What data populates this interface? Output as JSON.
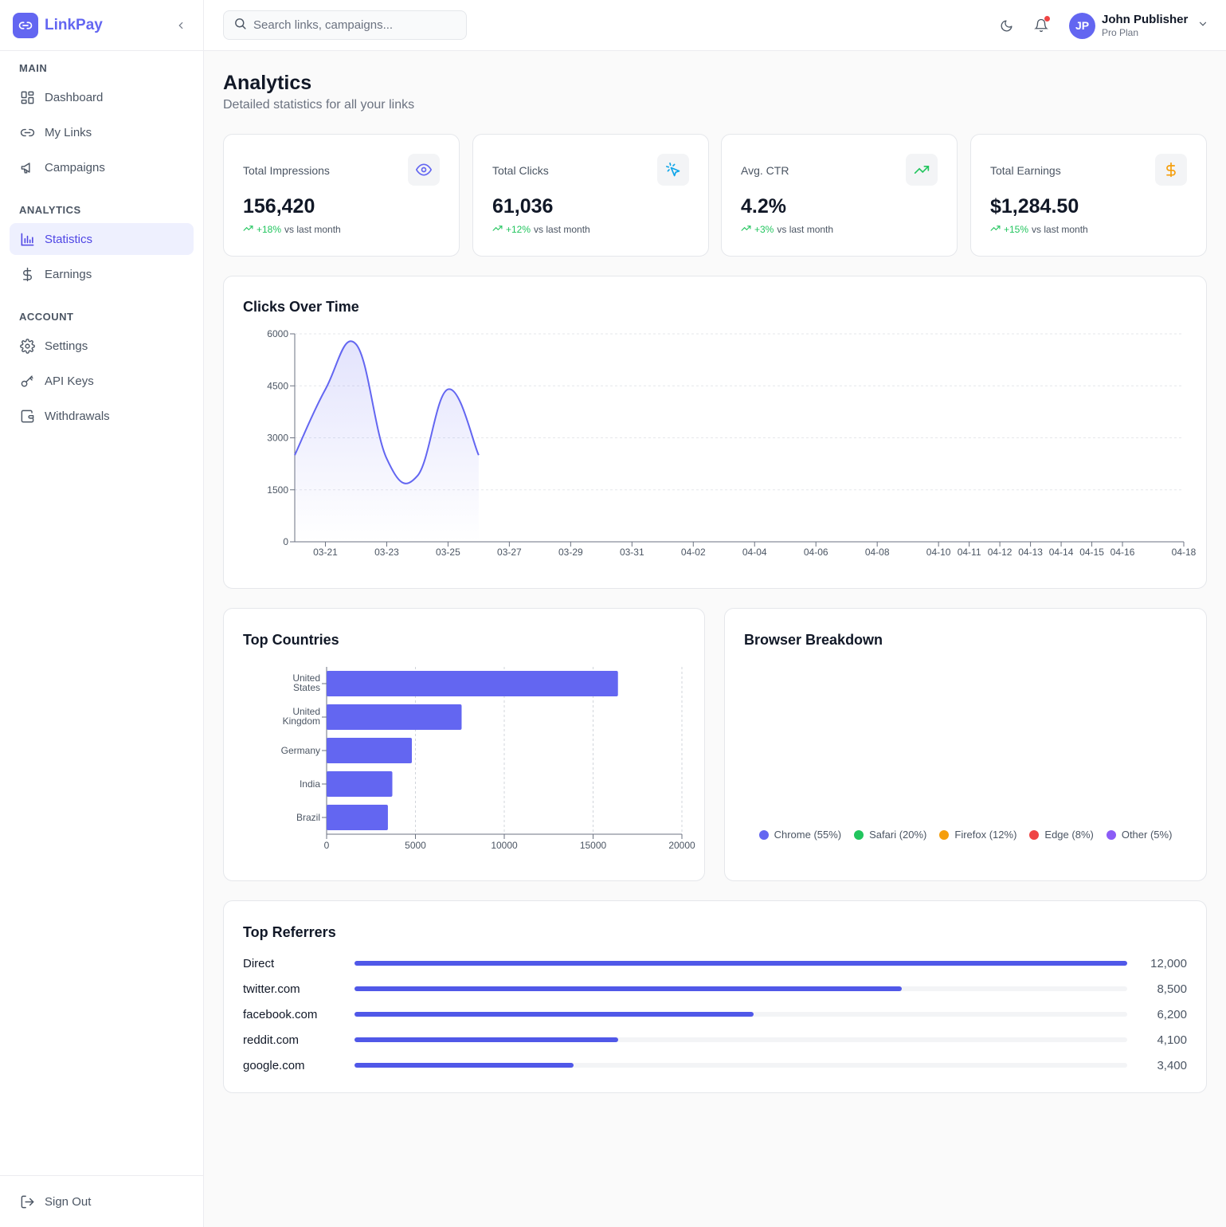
{
  "brand": {
    "name": "LinkPay"
  },
  "sidebar": {
    "sections": [
      {
        "heading": "MAIN",
        "items": [
          {
            "label": "Dashboard",
            "icon": "dashboard-icon"
          },
          {
            "label": "My Links",
            "icon": "link-icon"
          },
          {
            "label": "Campaigns",
            "icon": "megaphone-icon"
          }
        ]
      },
      {
        "heading": "ANALYTICS",
        "items": [
          {
            "label": "Statistics",
            "icon": "bar-chart-icon",
            "active": true
          },
          {
            "label": "Earnings",
            "icon": "dollar-icon"
          }
        ]
      },
      {
        "heading": "ACCOUNT",
        "items": [
          {
            "label": "Settings",
            "icon": "gear-icon"
          },
          {
            "label": "API Keys",
            "icon": "key-icon"
          },
          {
            "label": "Withdrawals",
            "icon": "wallet-icon"
          }
        ]
      }
    ],
    "signout_label": "Sign Out"
  },
  "header": {
    "search_placeholder": "Search links, campaigns...",
    "user": {
      "initials": "JP",
      "name": "John Publisher",
      "plan": "Pro Plan"
    }
  },
  "page": {
    "title": "Analytics",
    "subtitle": "Detailed statistics for all your links"
  },
  "stats": [
    {
      "label": "Total Impressions",
      "value": "156,420",
      "change": "+18%",
      "suffix": "vs last month",
      "icon": "eye-icon",
      "icon_color": "#6366f1"
    },
    {
      "label": "Total Clicks",
      "value": "61,036",
      "change": "+12%",
      "suffix": "vs last month",
      "icon": "cursor-click-icon",
      "icon_color": "#0ea5e9"
    },
    {
      "label": "Avg. CTR",
      "value": "4.2%",
      "change": "+3%",
      "suffix": "vs last month",
      "icon": "trending-up-icon",
      "icon_color": "#22c55e"
    },
    {
      "label": "Total Earnings",
      "value": "$1,284.50",
      "change": "+15%",
      "suffix": "vs last month",
      "icon": "dollar-icon",
      "icon_color": "#f59e0b"
    }
  ],
  "colors": {
    "accent": "#6366f1",
    "positive": "#22c55e"
  },
  "chart_data": [
    {
      "type": "area",
      "title": "Clicks Over Time",
      "x": [
        "03-20",
        "03-21",
        "03-22",
        "03-23",
        "03-24",
        "03-25",
        "03-26"
      ],
      "values": [
        2500,
        4400,
        5700,
        2400,
        1900,
        4400,
        2500
      ],
      "x_ticks": [
        "03-21",
        "03-23",
        "03-25",
        "03-27",
        "03-29",
        "03-31",
        "04-02",
        "04-04",
        "04-06",
        "04-08",
        "04-10",
        "04-11",
        "04-12",
        "04-13",
        "04-14",
        "04-15",
        "04-16",
        "04-18"
      ],
      "y_ticks": [
        0,
        1500,
        3000,
        4500,
        6000
      ],
      "ylim": [
        0,
        6000
      ],
      "grid": true,
      "color": "#6366f1"
    },
    {
      "type": "bar",
      "orientation": "horizontal",
      "title": "Top Countries",
      "categories": [
        "United States",
        "United Kingdom",
        "Germany",
        "India",
        "Brazil"
      ],
      "values": [
        16400,
        7600,
        4800,
        3700,
        3450
      ],
      "x_ticks": [
        0,
        5000,
        10000,
        15000,
        20000
      ],
      "xlim": [
        0,
        20000
      ],
      "grid": true,
      "color": "#6366f1"
    },
    {
      "type": "pie",
      "title": "Browser Breakdown",
      "legend": "bottom",
      "slices": [
        {
          "name": "Chrome",
          "label": "Chrome (55%)",
          "value": 55,
          "color": "#6366f1"
        },
        {
          "name": "Safari",
          "label": "Safari (20%)",
          "value": 20,
          "color": "#22c55e"
        },
        {
          "name": "Firefox",
          "label": "Firefox (12%)",
          "value": 12,
          "color": "#f59e0b"
        },
        {
          "name": "Edge",
          "label": "Edge (8%)",
          "value": 8,
          "color": "#ef4444"
        },
        {
          "name": "Other",
          "label": "Other (5%)",
          "value": 5,
          "color": "#8b5cf6"
        }
      ]
    }
  ],
  "referrers": {
    "title": "Top Referrers",
    "max": 12000,
    "items": [
      {
        "name": "Direct",
        "value": 12000,
        "display": "12,000"
      },
      {
        "name": "twitter.com",
        "value": 8500,
        "display": "8,500"
      },
      {
        "name": "facebook.com",
        "value": 6200,
        "display": "6,200"
      },
      {
        "name": "reddit.com",
        "value": 4100,
        "display": "4,100"
      },
      {
        "name": "google.com",
        "value": 3400,
        "display": "3,400"
      }
    ]
  }
}
